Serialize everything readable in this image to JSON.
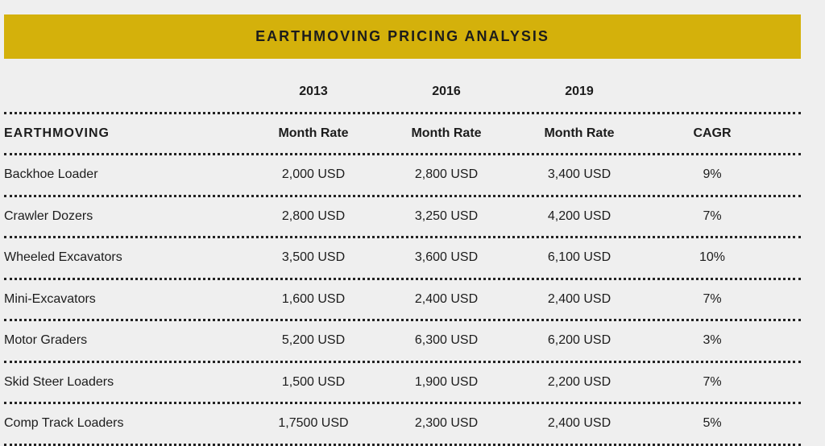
{
  "header": {
    "title": "EARTHMOVING PRICING ANALYSIS"
  },
  "years": [
    "2013",
    "2016",
    "2019"
  ],
  "columns": {
    "category": "EARTHMOVING",
    "rate1": "Month Rate",
    "rate2": "Month Rate",
    "rate3": "Month Rate",
    "cagr": "CAGR"
  },
  "rows": [
    {
      "name": "Backhoe Loader",
      "v2013": "2,000 USD",
      "v2016": "2,800 USD",
      "v2019": "3,400 USD",
      "cagr": "9%"
    },
    {
      "name": "Crawler Dozers",
      "v2013": "2,800 USD",
      "v2016": "3,250 USD",
      "v2019": "4,200 USD",
      "cagr": "7%"
    },
    {
      "name": "Wheeled Excavators",
      "v2013": "3,500 USD",
      "v2016": "3,600 USD",
      "v2019": "6,100 USD",
      "cagr": "10%"
    },
    {
      "name": "Mini-Excavators",
      "v2013": "1,600 USD",
      "v2016": "2,400 USD",
      "v2019": "2,400 USD",
      "cagr": "7%"
    },
    {
      "name": "Motor Graders",
      "v2013": "5,200 USD",
      "v2016": "6,300 USD",
      "v2019": "6,200 USD",
      "cagr": "3%"
    },
    {
      "name": "Skid Steer Loaders",
      "v2013": "1,500 USD",
      "v2016": "1,900 USD",
      "v2019": "2,200 USD",
      "cagr": "7%"
    },
    {
      "name": "Comp Track Loaders",
      "v2013": "1,7500 USD",
      "v2016": "2,300 USD",
      "v2019": "2,400 USD",
      "cagr": "5%"
    }
  ],
  "colors": {
    "banner": "#d4b10b",
    "background": "#efefef",
    "text": "#1c1c1c"
  }
}
